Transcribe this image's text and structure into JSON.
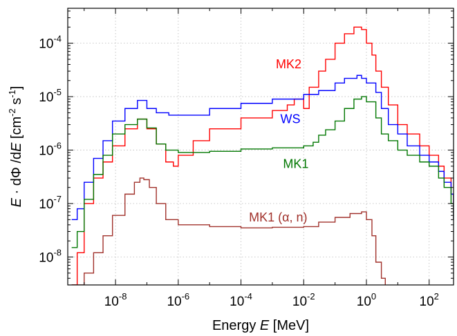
{
  "chart_data": {
    "type": "line",
    "step": true,
    "scale": {
      "x": "log",
      "y": "log"
    },
    "xlim": [
      3e-10,
      600
    ],
    "ylim": [
      3e-09,
      0.00045
    ],
    "grid": true,
    "x_ticks": [
      {
        "value": 1e-08,
        "base": "10",
        "exp": "-8"
      },
      {
        "value": 1e-06,
        "base": "10",
        "exp": "-6"
      },
      {
        "value": 0.0001,
        "base": "10",
        "exp": "-4"
      },
      {
        "value": 0.01,
        "base": "10",
        "exp": "-2"
      },
      {
        "value": 1,
        "base": "10",
        "exp": "0"
      },
      {
        "value": 100,
        "base": "10",
        "exp": "2"
      }
    ],
    "y_ticks": [
      {
        "value": 1e-08,
        "base": "10",
        "exp": "-8"
      },
      {
        "value": 1e-07,
        "base": "10",
        "exp": "-7"
      },
      {
        "value": 1e-06,
        "base": "10",
        "exp": "-6"
      },
      {
        "value": 1e-05,
        "base": "10",
        "exp": "-5"
      },
      {
        "value": 0.0001,
        "base": "10",
        "exp": "-4"
      }
    ],
    "xlabel": {
      "pre": "Energy ",
      "var": "E",
      "post": "  [MeV]"
    },
    "ylabel": {
      "v1": "E",
      "t1": " · dΦ /d",
      "v2": "E",
      "t2": "  [cm",
      "s1": "-2",
      "t3": " s",
      "s2": "-1",
      "t4": "]"
    },
    "series": [
      {
        "name": "MK2",
        "color": "#ff0000",
        "x": [
          4e-10,
          6e-10,
          1e-09,
          2e-09,
          4e-09,
          8e-09,
          2e-08,
          5e-08,
          7e-08,
          1e-07,
          2e-07,
          4e-07,
          7e-07,
          1e-06,
          3e-06,
          1e-05,
          0.0001,
          0.001,
          0.003,
          0.005,
          0.01,
          0.015,
          0.03,
          0.05,
          0.1,
          0.2,
          0.4,
          0.7,
          1,
          1.5,
          2,
          3,
          5,
          10,
          20,
          50,
          100,
          200,
          300,
          500,
          600
        ],
        "y": [
          3e-09,
          1.2e-08,
          1e-07,
          3e-07,
          6e-07,
          1.2e-06,
          2.5e-06,
          3.8e-06,
          3.8e-06,
          2.5e-06,
          1.3e-06,
          6e-07,
          5e-07,
          8e-07,
          1.5e-06,
          2.5e-06,
          4e-06,
          5.5e-06,
          7e-06,
          9e-06,
          6e-06,
          1.5e-05,
          3e-05,
          5e-05,
          0.0001,
          0.00015,
          0.0002,
          0.00018,
          0.0001,
          6e-05,
          3e-05,
          1.5e-05,
          7e-06,
          3e-06,
          2e-06,
          1.2e-06,
          8e-07,
          5e-07,
          3e-07,
          1.5e-07,
          5e-08
        ]
      },
      {
        "name": "WS",
        "color": "#0000ff",
        "x": [
          4e-10,
          6e-10,
          1e-09,
          2e-09,
          4e-09,
          8e-09,
          2e-08,
          5e-08,
          7e-08,
          1e-07,
          2e-07,
          5e-07,
          1e-06,
          1e-05,
          0.0001,
          0.001,
          0.01,
          0.03,
          0.1,
          0.2,
          0.5,
          0.7,
          1,
          2,
          3,
          5,
          10,
          20,
          50,
          100,
          200,
          300,
          500,
          600
        ],
        "y": [
          5e-08,
          8e-08,
          2.5e-07,
          7e-07,
          1.5e-06,
          3.5e-06,
          6e-06,
          8.5e-06,
          8.5e-06,
          6e-06,
          5e-06,
          4.5e-06,
          4.5e-06,
          6e-06,
          7.5e-06,
          9e-06,
          1.1e-05,
          1.3e-05,
          1.8e-05,
          2.2e-05,
          2.5e-05,
          2.2e-05,
          1.8e-05,
          1.2e-05,
          6e-06,
          3e-06,
          2e-06,
          1.2e-06,
          8e-07,
          6e-07,
          4e-07,
          2.5e-07,
          1.5e-07,
          5e-08
        ]
      },
      {
        "name": "MK1",
        "color": "#007700",
        "x": [
          4e-10,
          6e-10,
          1e-09,
          2e-09,
          4e-09,
          8e-09,
          2e-08,
          5e-08,
          7e-08,
          1e-07,
          2e-07,
          4e-07,
          1e-06,
          1e-05,
          0.0001,
          0.001,
          0.01,
          0.02,
          0.03,
          0.05,
          0.1,
          0.2,
          0.4,
          0.7,
          1,
          2,
          3,
          5,
          10,
          20,
          50,
          100,
          200,
          300,
          500,
          600
        ],
        "y": [
          1.5e-08,
          3e-08,
          1.2e-07,
          3.5e-07,
          8e-07,
          2e-06,
          3e-06,
          3.8e-06,
          3.8e-06,
          2.6e-06,
          1.3e-06,
          1e-06,
          9e-07,
          9.5e-07,
          1.05e-06,
          1.1e-06,
          1.2e-06,
          1.4e-06,
          1.9e-06,
          2.4e-06,
          3.5e-06,
          6e-06,
          9e-06,
          1e-05,
          8e-06,
          4e-06,
          2e-06,
          1.5e-06,
          1e-06,
          8e-07,
          6e-07,
          5e-07,
          3e-07,
          2e-07,
          1e-07,
          5e-08
        ]
      },
      {
        "name": "MK1 (α, n)",
        "color": "#a0302a",
        "x": [
          4e-10,
          1e-09,
          2e-09,
          4e-09,
          8e-09,
          2e-08,
          4e-08,
          6e-08,
          8e-08,
          1.2e-07,
          2e-07,
          4e-07,
          1e-06,
          1e-05,
          0.0001,
          0.001,
          0.01,
          0.03,
          0.1,
          0.3,
          0.7,
          1,
          1.5,
          2,
          3,
          4
        ],
        "y": [
          3e-09,
          5e-09,
          1.2e-08,
          2.5e-08,
          6e-08,
          1.5e-07,
          2.5e-07,
          3e-07,
          2.8e-07,
          2e-07,
          1e-07,
          5e-08,
          4e-08,
          3.7e-08,
          3.5e-08,
          3.6e-08,
          3.7e-08,
          4.5e-08,
          5.5e-08,
          6.5e-08,
          7e-08,
          5e-08,
          2.5e-08,
          8e-09,
          4e-09,
          3e-09
        ]
      }
    ],
    "annotations": [
      {
        "text": "MK2",
        "color": "#ff0000",
        "x": 0.0013,
        "y": 3.4e-05
      },
      {
        "text": "WS",
        "color": "#0000ff",
        "x": 0.0018,
        "y": 3.2e-06
      },
      {
        "text": "MK1",
        "color": "#007700",
        "x": 0.0022,
        "y": 4.6e-07
      },
      {
        "text": "MK1 (α, n)",
        "color": "#a0302a",
        "x": 0.00018,
        "y": 4.6e-08
      }
    ]
  }
}
